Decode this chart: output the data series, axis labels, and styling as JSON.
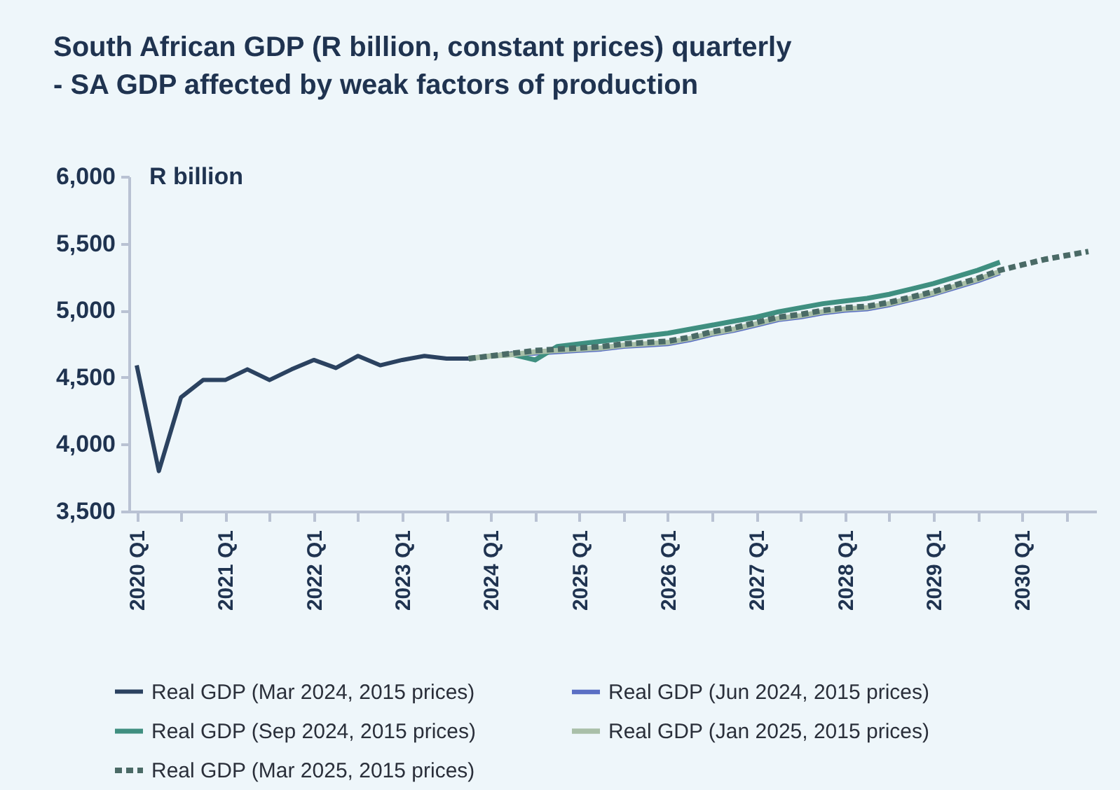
{
  "chart_data": {
    "type": "line",
    "title": "South African GDP (R billion, constant prices) quarterly\n- SA GDP affected by weak factors of production",
    "ylabel": "R billion",
    "categories": [
      "2020 Q1",
      null,
      null,
      null,
      "2021 Q1",
      null,
      null,
      null,
      "2022 Q1",
      null,
      null,
      null,
      "2023 Q1",
      null,
      null,
      null,
      "2024 Q1",
      null,
      null,
      null,
      "2025 Q1",
      null,
      null,
      null,
      "2026 Q1",
      null,
      null,
      null,
      "2027 Q1",
      null,
      null,
      null,
      "2028 Q1",
      null,
      null,
      null,
      "2029 Q1",
      null,
      null,
      null,
      "2030 Q1",
      null,
      null,
      null
    ],
    "series": [
      {
        "name": "Real GDP (Mar 2024, 2015 prices)",
        "color": "#2b4260",
        "line_style": "solid",
        "values": [
          4590,
          3800,
          4350,
          4480,
          4480,
          4560,
          4480,
          4560,
          4630,
          4570,
          4660,
          4590,
          4630,
          4660,
          4640,
          4640,
          4660,
          4680,
          null,
          null,
          null,
          null,
          null,
          null,
          null,
          null,
          null,
          null,
          null,
          null,
          null,
          null,
          null,
          null,
          null,
          null,
          null,
          null,
          null,
          null,
          null,
          null,
          null,
          null
        ]
      },
      {
        "name": "Real GDP (Jun 2024, 2015 prices)",
        "color": "#5a6fc4",
        "line_style": "solid",
        "values": [
          null,
          null,
          null,
          null,
          null,
          null,
          null,
          null,
          null,
          null,
          null,
          null,
          null,
          null,
          null,
          4640,
          4660,
          4670,
          4680,
          4690,
          4700,
          4710,
          4730,
          4740,
          4750,
          4780,
          4820,
          4850,
          4890,
          4930,
          4950,
          4980,
          5000,
          5010,
          5040,
          5080,
          5120,
          5170,
          5220,
          5280,
          null,
          null,
          null,
          null
        ]
      },
      {
        "name": "Real GDP (Sep 2024, 2015 prices)",
        "color": "#3f8f80",
        "line_style": "solid",
        "values": [
          null,
          null,
          null,
          null,
          null,
          null,
          null,
          null,
          null,
          null,
          null,
          null,
          null,
          null,
          null,
          4640,
          4660,
          4670,
          4630,
          4730,
          4750,
          4770,
          4790,
          4810,
          4830,
          4860,
          4890,
          4920,
          4950,
          4990,
          5020,
          5050,
          5070,
          5090,
          5120,
          5160,
          5200,
          5250,
          5300,
          5360,
          null,
          null,
          null,
          null
        ]
      },
      {
        "name": "Real GDP (Jan 2025, 2015 prices)",
        "color": "#a9bfa8",
        "line_style": "solid",
        "values": [
          null,
          null,
          null,
          null,
          null,
          null,
          null,
          null,
          null,
          null,
          null,
          null,
          null,
          null,
          null,
          4640,
          4660,
          4670,
          4690,
          4700,
          4710,
          4720,
          4740,
          4750,
          4760,
          4790,
          4830,
          4860,
          4900,
          4940,
          4960,
          4990,
          5010,
          5020,
          5050,
          5090,
          5130,
          5180,
          5230,
          5290,
          null,
          null,
          null,
          null
        ]
      },
      {
        "name": "Real GDP (Mar 2025, 2015 prices)",
        "color": "#4a6a66",
        "line_style": "dashed",
        "values": [
          null,
          null,
          null,
          null,
          null,
          null,
          null,
          null,
          null,
          null,
          null,
          null,
          null,
          null,
          null,
          4640,
          4660,
          4680,
          4700,
          4710,
          4720,
          4730,
          4750,
          4760,
          4770,
          4800,
          4840,
          4870,
          4910,
          4950,
          4970,
          5000,
          5020,
          5030,
          5060,
          5100,
          5140,
          5190,
          5240,
          5300,
          5340,
          5380,
          5410,
          5440
        ]
      }
    ],
    "ylim": [
      3500,
      6000
    ],
    "yticks": [
      {
        "value": 3500,
        "label": "3,500"
      },
      {
        "value": 4000,
        "label": "4,000"
      },
      {
        "value": 4500,
        "label": "4,500"
      },
      {
        "value": 5000,
        "label": "5,000"
      },
      {
        "value": 5500,
        "label": "5,500"
      },
      {
        "value": 6000,
        "label": "6,000"
      }
    ],
    "grid": false,
    "legend": "bottom",
    "marker": "none"
  }
}
